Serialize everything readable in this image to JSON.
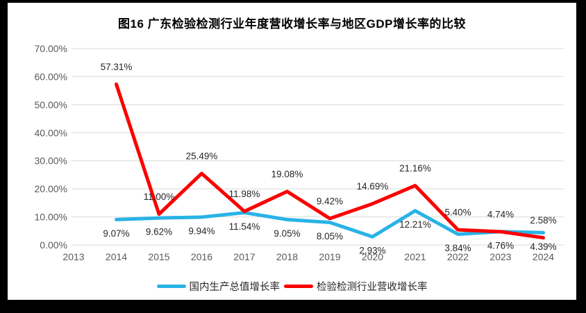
{
  "chart_data": {
    "type": "line",
    "title": "图16 广东检验检测行业年度营收增长率与地区GDP增长率的比较",
    "categories": [
      "2013",
      "2014",
      "2015",
      "2016",
      "2017",
      "2018",
      "2019",
      "2020",
      "2021",
      "2022",
      "2023",
      "2024"
    ],
    "series": [
      {
        "name": "国内生产总值增长率",
        "color": "#29B3E6",
        "values": [
          null,
          9.07,
          9.62,
          9.94,
          11.54,
          9.05,
          8.05,
          2.93,
          12.21,
          3.84,
          4.76,
          4.39
        ],
        "label_position": "below"
      },
      {
        "name": "检验检测行业营收增长率",
        "color": "#FC0000",
        "values": [
          null,
          57.31,
          11.0,
          25.49,
          11.98,
          19.08,
          9.42,
          14.69,
          21.16,
          5.4,
          4.74,
          2.58
        ],
        "label_position": "above"
      }
    ],
    "ylim": [
      0,
      70
    ],
    "ytick_step": 10,
    "ytick_labels": [
      "0.00%",
      "10.00%",
      "20.00%",
      "30.00%",
      "40.00%",
      "50.00%",
      "60.00%",
      "70.00%"
    ],
    "data_label_format": "percent-2dp",
    "grid": true,
    "gridline_color": "#D9D9D9",
    "axis_text_color": "#595959",
    "data_label_color": "#262626",
    "legend_position": "bottom",
    "background_color": "#FFFFFF",
    "frame_color": "#000000"
  }
}
